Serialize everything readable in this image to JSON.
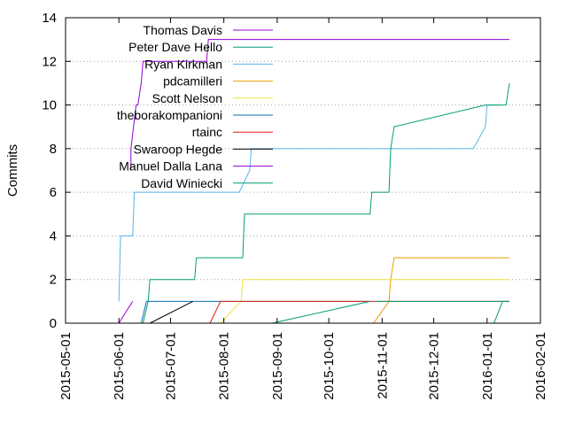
{
  "chart_data": {
    "type": "line",
    "title": "",
    "xlabel": "",
    "ylabel": "Commits",
    "x_type": "date",
    "xlim": [
      "2015-05-01",
      "2016-02-01"
    ],
    "ylim": [
      0,
      14
    ],
    "xticks": [
      "2015-05-01",
      "2015-06-01",
      "2015-07-01",
      "2015-08-01",
      "2015-09-01",
      "2015-10-01",
      "2015-11-01",
      "2015-12-01",
      "2016-01-01",
      "2016-02-01"
    ],
    "yticks": [
      0,
      2,
      4,
      6,
      8,
      10,
      12,
      14
    ],
    "grid": true,
    "legend_position": "top-left",
    "series": [
      {
        "name": "Thomas Davis",
        "color": "#9400d3",
        "x": [
          "2015-06-08",
          "2015-06-08",
          "2015-06-11",
          "2015-06-12",
          "2015-06-14",
          "2015-06-15",
          "2015-06-16",
          "2015-06-18",
          "2015-06-20",
          "2015-07-22",
          "2015-07-23",
          "2016-01-14"
        ],
        "y": [
          7,
          8,
          10,
          10,
          11,
          12,
          12,
          12,
          12,
          12,
          13,
          13
        ]
      },
      {
        "name": "Peter Dave Hello",
        "color": "#009e73",
        "x": [
          "2016-01-05",
          "2016-01-10",
          "2016-01-14"
        ],
        "y": [
          0,
          1,
          1
        ]
      },
      {
        "name": "Ryan Kirkman",
        "color": "#56b4e9",
        "x": [
          "2015-06-01",
          "2015-06-02",
          "2015-06-09",
          "2015-06-10",
          "2015-08-10",
          "2015-08-16",
          "2015-08-17",
          "2015-12-24",
          "2015-12-31",
          "2016-01-01",
          "2016-01-08"
        ],
        "y": [
          1,
          4,
          4,
          6,
          6,
          7,
          8,
          8,
          9,
          10,
          10
        ]
      },
      {
        "name": "pdcamilleri",
        "color": "#e69f00",
        "x": [
          "2015-10-27",
          "2015-11-05",
          "2015-11-06",
          "2015-11-08",
          "2016-01-14"
        ],
        "y": [
          0,
          1,
          2,
          3,
          3
        ]
      },
      {
        "name": "Scott Nelson",
        "color": "#f0e442",
        "x": [
          "2015-07-30",
          "2015-08-11",
          "2015-08-12",
          "2016-01-14"
        ],
        "y": [
          0,
          1,
          2,
          2
        ]
      },
      {
        "name": "theborakompanioni",
        "color": "#0072b2",
        "x": [
          "2015-06-14",
          "2015-06-17",
          "2015-10-25"
        ],
        "y": [
          0,
          1,
          1
        ]
      },
      {
        "name": "rtainc",
        "color": "#e51e10",
        "x": [
          "2015-07-24",
          "2015-07-30",
          "2016-01-14"
        ],
        "y": [
          0,
          1,
          1
        ]
      },
      {
        "name": "Swaroop Hegde",
        "color": "#000000",
        "x": [
          "2015-06-19",
          "2015-07-14"
        ],
        "y": [
          0,
          1
        ]
      },
      {
        "name": "Manuel Dalla Lana",
        "color": "#9400d3",
        "x": [
          "2015-06-01",
          "2015-06-09"
        ],
        "y": [
          0,
          1
        ]
      },
      {
        "name": "David Winiecki",
        "color": "#009e73",
        "x": [
          "2015-06-15",
          "2015-06-18",
          "2015-06-19",
          "2015-07-15",
          "2015-07-16",
          "2015-08-12",
          "2015-08-13",
          "2015-10-25",
          "2015-10-26",
          "2015-11-05",
          "2015-11-06",
          "2015-11-08",
          "2015-12-31",
          "2016-01-12",
          "2016-01-14"
        ],
        "y": [
          0,
          1,
          2,
          2,
          3,
          3,
          5,
          5,
          6,
          6,
          8,
          9,
          10,
          10,
          11
        ]
      },
      {
        "name": "",
        "color": "#009e73",
        "x": [
          "2015-08-29",
          "2015-10-25"
        ],
        "y": [
          0,
          1
        ]
      },
      {
        "name": "",
        "color": "#009e73",
        "x": [
          "2015-10-28",
          "2016-01-14"
        ],
        "y": [
          1,
          1
        ]
      }
    ]
  }
}
